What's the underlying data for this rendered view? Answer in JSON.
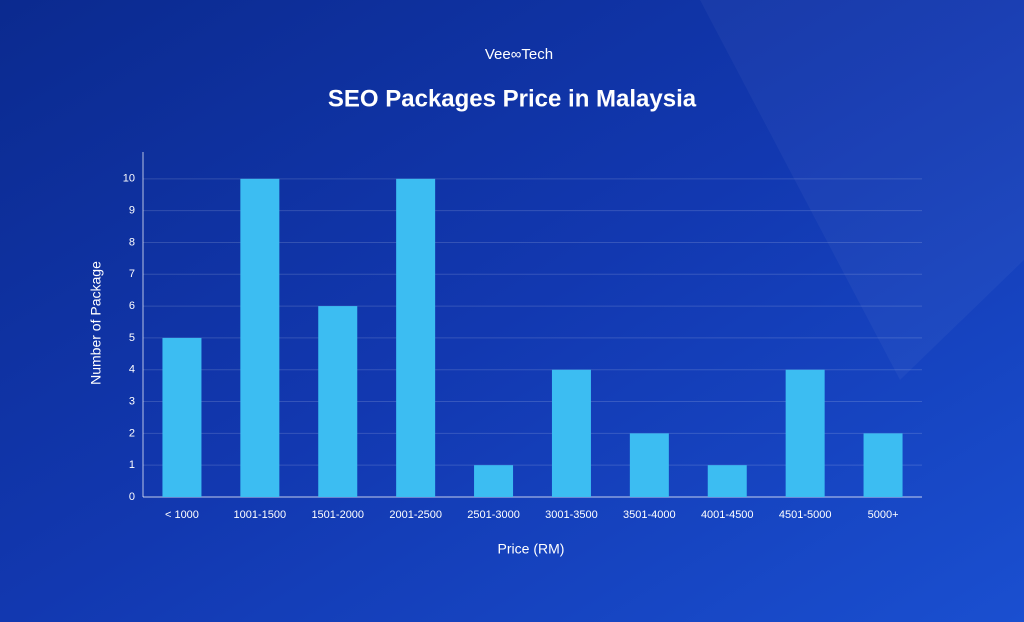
{
  "chart_data": {
    "type": "bar",
    "brand": "Vee∞Tech",
    "title": "SEO Packages Price in Malaysia",
    "x_label": "Price (RM)",
    "y_label": "Number of Package",
    "categories": [
      "< 1000",
      "1001-1500",
      "1501-2000",
      "2001-2500",
      "2501-3000",
      "3001-3500",
      "3501-4000",
      "4001-4500",
      "4501-5000",
      "5000+"
    ],
    "values": [
      5,
      10,
      6,
      10,
      1,
      4,
      2,
      1,
      4,
      2
    ],
    "color": "#3cbdf2",
    "ylim": [
      0,
      11
    ],
    "yticks": [
      0,
      1,
      2,
      3,
      4,
      5,
      6,
      7,
      8,
      9,
      10
    ],
    "grid": true
  }
}
